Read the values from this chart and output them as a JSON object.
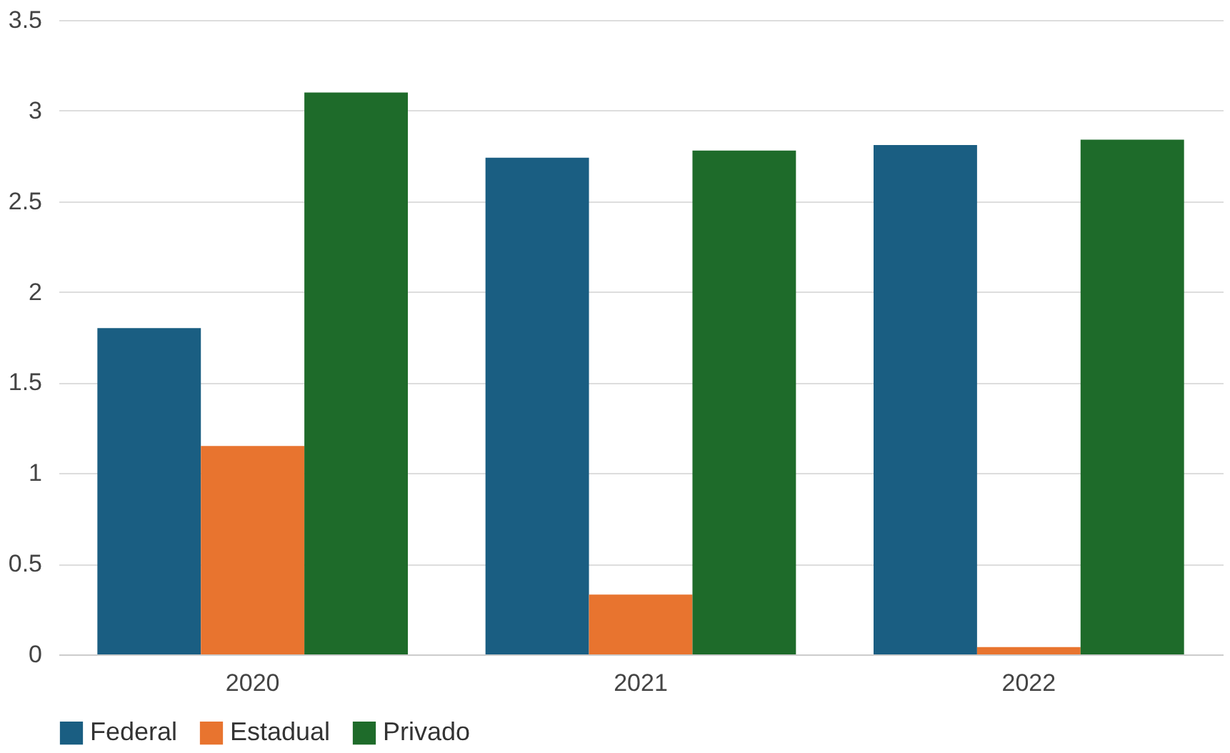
{
  "chart_data": {
    "type": "bar",
    "categories": [
      "2020",
      "2021",
      "2022"
    ],
    "series": [
      {
        "name": "Federal",
        "color": "#1a5e82",
        "values": [
          1.8,
          2.74,
          2.81
        ]
      },
      {
        "name": "Estadual",
        "color": "#e8742f",
        "values": [
          1.15,
          0.33,
          0.04
        ]
      },
      {
        "name": "Privado",
        "color": "#1e6b2a",
        "values": [
          3.1,
          2.78,
          2.84
        ]
      }
    ],
    "ylim": [
      0,
      3.5
    ],
    "yticks": [
      0,
      0.5,
      1,
      1.5,
      2,
      2.5,
      3,
      3.5
    ],
    "grid": "y",
    "legend": "bottom"
  }
}
